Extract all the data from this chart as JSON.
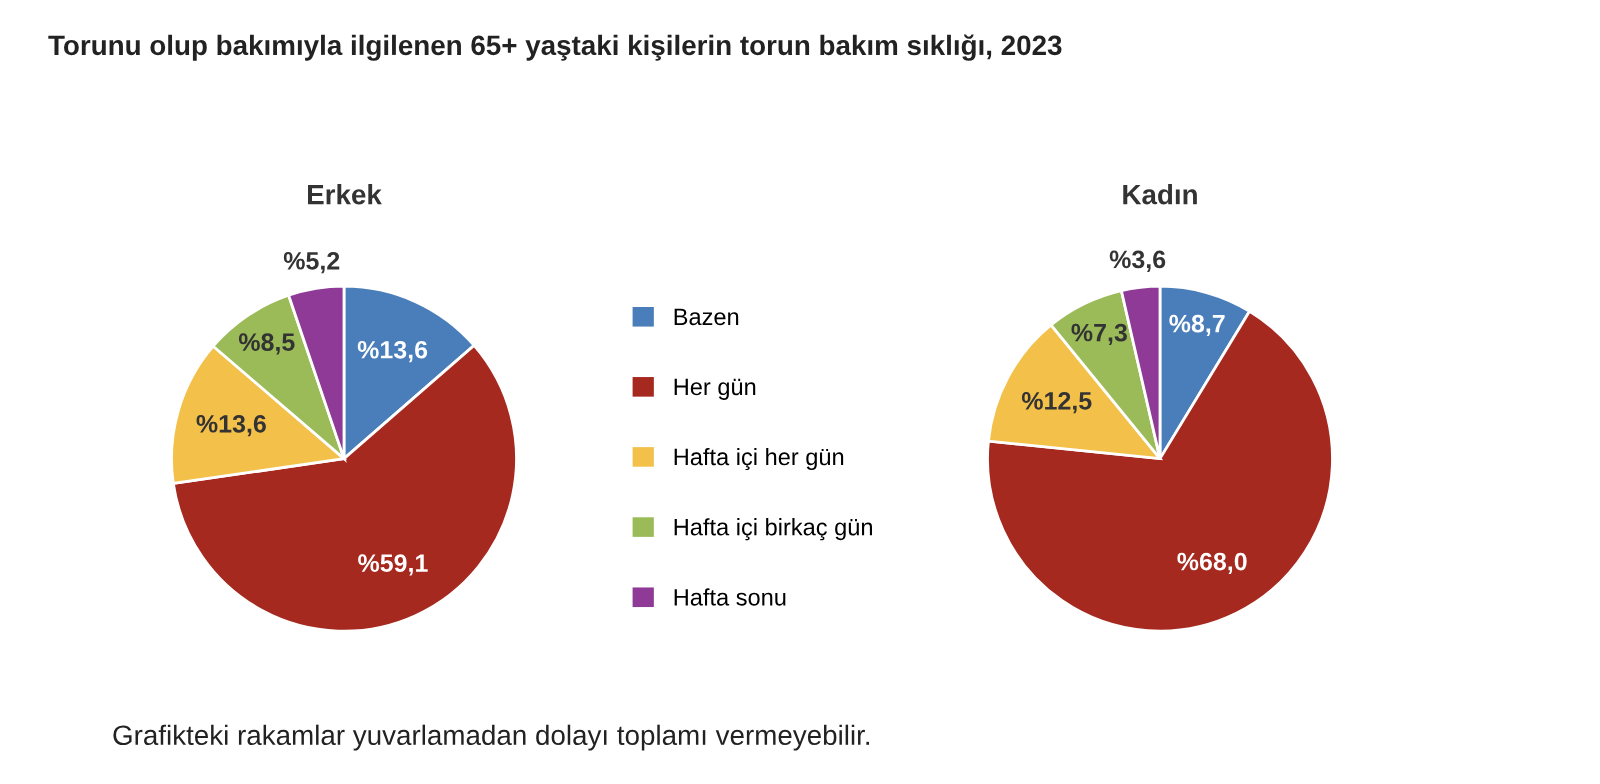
{
  "chart_data": [
    {
      "type": "pie",
      "title": "Erkek",
      "categories": [
        "Bazen",
        "Her gün",
        "Hafta içi her gün",
        "Hafta içi birkaç gün",
        "Hafta sonu"
      ],
      "values": [
        13.6,
        59.1,
        13.6,
        8.5,
        5.2
      ],
      "value_labels": [
        "%13,6",
        "%59,1",
        "%13,6",
        "%8,5",
        "%5,2"
      ],
      "colors": [
        "#4a7ebb",
        "#a5291f",
        "#f3c04a",
        "#9bbb59",
        "#8e3a96"
      ],
      "legend": "right",
      "annotations": [
        "Torunu olup bakımıyla ilgilenen 65+ yaştaki kişilerin torun bakım sıklığı, 2023",
        "Grafikteki rakamlar yuvarlamadan dolayı toplamı vermeyebilir."
      ]
    },
    {
      "type": "pie",
      "title": "Kadın",
      "categories": [
        null,
        null,
        null,
        null,
        null
      ],
      "values": [
        8.7,
        68.0,
        12.5,
        7.3,
        3.6
      ],
      "value_labels": [
        "%8,7",
        "%68,0",
        "%12,5",
        "%7,3",
        "%3,6"
      ],
      "colors": [
        "#4a7ebb",
        "#a5291f",
        "#f3c04a",
        "#9bbb59",
        "#8e3a96"
      ]
    }
  ]
}
